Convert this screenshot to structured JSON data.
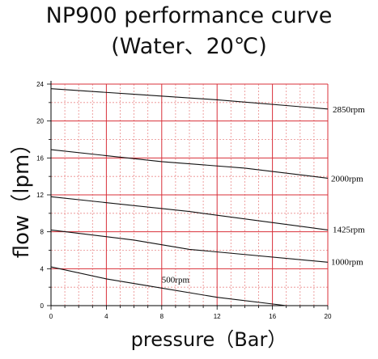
{
  "chart_data": {
    "type": "line",
    "title": "NP900 performance curve",
    "subtitle": "(Water、20℃)",
    "xlabel": "pressure（Bar）",
    "ylabel": "flow（lpm）",
    "xlim": [
      0,
      20
    ],
    "ylim": [
      0,
      24
    ],
    "xticks": [
      0,
      4,
      8,
      12,
      16,
      20
    ],
    "yticks": [
      0,
      4,
      8,
      12,
      16,
      20,
      24
    ],
    "grid": true,
    "series": [
      {
        "name": "2850rpm",
        "x": [
          0,
          6,
          12,
          20
        ],
        "y": [
          23.5,
          22.9,
          22.3,
          21.3
        ]
      },
      {
        "name": "2000rpm",
        "x": [
          0,
          8,
          14,
          20
        ],
        "y": [
          16.9,
          15.6,
          14.9,
          13.8
        ]
      },
      {
        "name": "1425rpm",
        "x": [
          0,
          10,
          20
        ],
        "y": [
          11.8,
          10.2,
          8.2
        ]
      },
      {
        "name": "1000rpm",
        "x": [
          0,
          6,
          10,
          20
        ],
        "y": [
          8.2,
          7.1,
          6.1,
          4.7
        ]
      },
      {
        "name": "500rpm",
        "x": [
          0,
          4,
          8,
          12,
          17
        ],
        "y": [
          4.2,
          2.9,
          1.9,
          0.9,
          0
        ]
      }
    ],
    "colors": {
      "major_grid": "#d8303a",
      "minor_grid": "#e98a8a",
      "line": "#111111",
      "axis": "#000000"
    }
  }
}
